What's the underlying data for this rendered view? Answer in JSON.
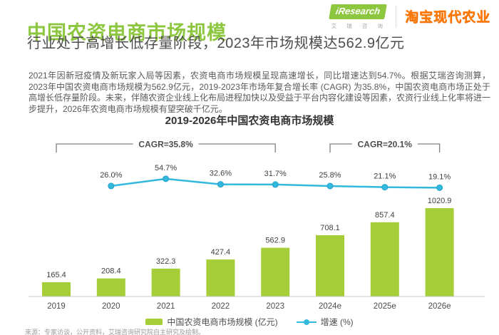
{
  "header": {
    "title": "中国农资电商市场规模",
    "subtitle": "行业处于高增长低存量阶段，2023年市场规模达562.9亿元",
    "logo": {
      "brand": "iResearch",
      "brand_sub": "艾 瑞 咨 询",
      "partner": "淘宝现代农业"
    }
  },
  "body_paragraph": "2021年因新冠疫情及新玩家入局等因素，农资电商市场规模呈现高速增长，同比增速达到54.7%。根据艾瑞咨询测算，2023年中国农资电商市场规模为562.9亿元，2019-2023年市场年复合增长率 (CAGR) 为35.8%，中国农资电商市场正处于高增长低存量阶段。未来，伴随农资企业线上化布局进程加快以及受益于平台内容化建设等因素，农资行业线上化率将进一步提升，2026年农资电商市场规模有望突破千亿元。",
  "chart_data": {
    "type": "bar",
    "title": "2019-2026年中国农资电商市场规模",
    "categories": [
      "2019",
      "2020",
      "2021",
      "2022",
      "2023",
      "2024e",
      "2025e",
      "2026e"
    ],
    "series": [
      {
        "name": "中国农资电商市场规模 (亿元)",
        "type": "bar",
        "color": "#a5ce39",
        "values": [
          165.4,
          208.4,
          322.3,
          427.4,
          562.9,
          708.1,
          857.4,
          1020.9
        ]
      },
      {
        "name": "增速 (%)",
        "type": "line",
        "color": "#33b9de",
        "values": [
          null,
          26.0,
          54.7,
          32.6,
          31.7,
          25.8,
          21.1,
          19.1
        ]
      }
    ],
    "annotations": [
      {
        "label": "CAGR=35.8%",
        "from": "2019",
        "to": "2023"
      },
      {
        "label": "CAGR=20.1%",
        "from": "2024e",
        "to": "2026e"
      }
    ],
    "ylim": [
      0,
      1100
    ],
    "grid": false,
    "legend_position": "bottom"
  },
  "footnote": "来源：专家访谈，公开资料，艾瑞咨询研究院自主研究及绘制。",
  "colors": {
    "title_green": "#8dc63f",
    "bar_green": "#a5ce39",
    "line_blue": "#33b9de",
    "partner_orange": "#ff7a00",
    "axis_gray": "#c8c8c8",
    "bracket_gray": "#808080"
  }
}
